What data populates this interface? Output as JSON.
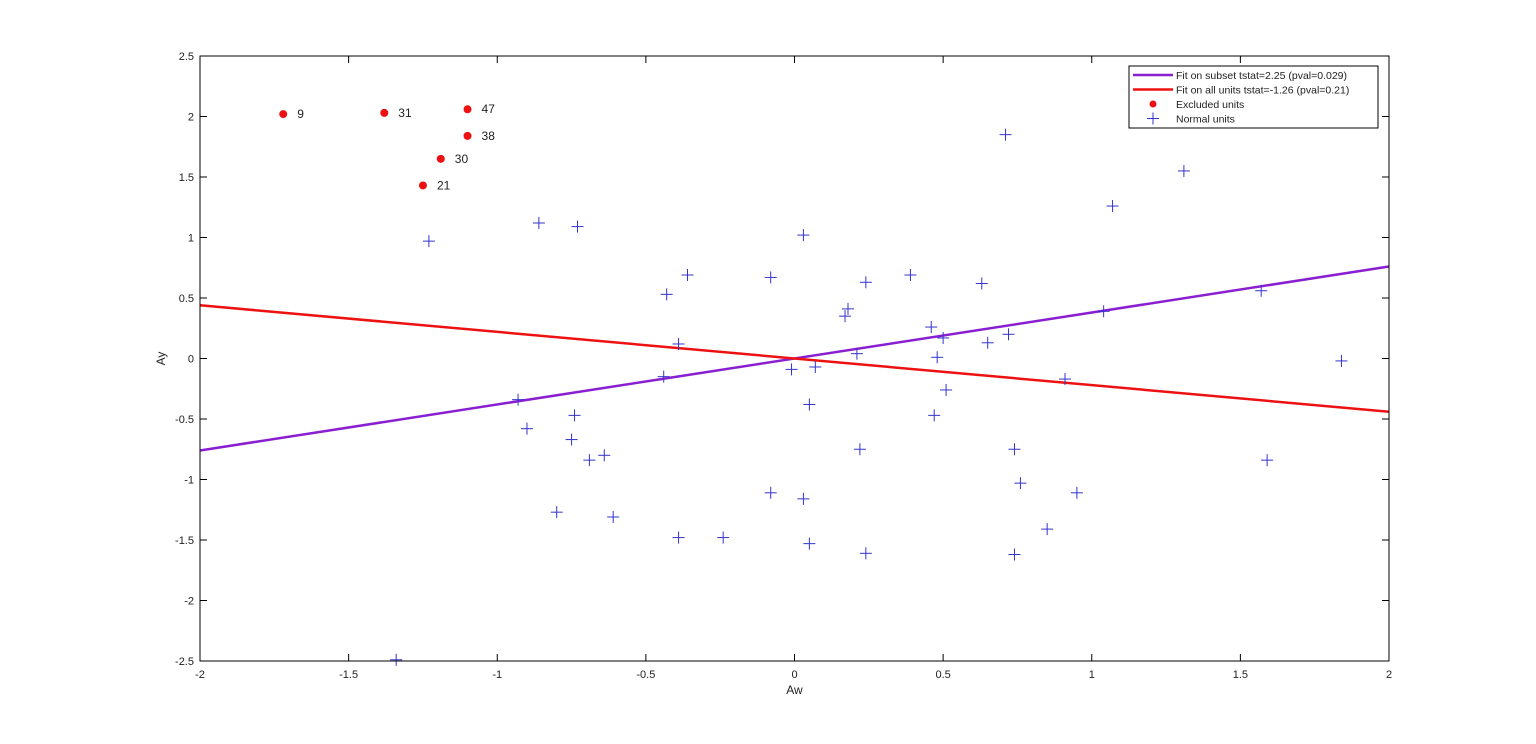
{
  "chart_data": {
    "type": "scatter",
    "xlabel": "Aw",
    "ylabel": "Ay",
    "xlim": [
      -2,
      2
    ],
    "ylim": [
      -2.5,
      2.5
    ],
    "xticks": [
      "-2",
      "-1.5",
      "-1",
      "-0.5",
      "0",
      "0.5",
      "1",
      "1.5",
      "2"
    ],
    "yticks": [
      "2.5",
      "2",
      "1.5",
      "1",
      "0.5",
      "0",
      "-0.5",
      "-1",
      "-1.5",
      "-2",
      "-2.5"
    ],
    "grid": false,
    "legend_position": "top-right",
    "fit_lines": [
      {
        "name": "Fit on subset tstat=2.25 (pval=0.029)",
        "color": "#8a1fd1",
        "slope": 0.38,
        "intercept": 0
      },
      {
        "name": "Fit on all units tstat=-1.26 (pval=0.21)",
        "color": "#ee1111",
        "slope": -0.22,
        "intercept": 0
      }
    ],
    "excluded_units": {
      "name": "Excluded units",
      "color": "#ee1111",
      "marker": "filled-circle",
      "points": [
        {
          "x": -1.72,
          "y": 2.02,
          "label": "9"
        },
        {
          "x": -1.38,
          "y": 2.03,
          "label": "31"
        },
        {
          "x": -1.1,
          "y": 2.06,
          "label": "47"
        },
        {
          "x": -1.1,
          "y": 1.84,
          "label": "38"
        },
        {
          "x": -1.19,
          "y": 1.65,
          "label": "30"
        },
        {
          "x": -1.25,
          "y": 1.43,
          "label": "21"
        }
      ]
    },
    "normal_units": {
      "name": "Normal units",
      "color": "#3333cc",
      "marker": "plus",
      "points": [
        {
          "x": -1.23,
          "y": 0.97
        },
        {
          "x": -0.86,
          "y": 1.12
        },
        {
          "x": -0.73,
          "y": 1.09
        },
        {
          "x": -0.36,
          "y": 0.69
        },
        {
          "x": -0.43,
          "y": 0.53
        },
        {
          "x": -0.39,
          "y": 0.12
        },
        {
          "x": -0.44,
          "y": -0.15
        },
        {
          "x": -0.93,
          "y": -0.34
        },
        {
          "x": -0.9,
          "y": -0.58
        },
        {
          "x": -0.74,
          "y": -0.47
        },
        {
          "x": -0.75,
          "y": -0.67
        },
        {
          "x": -0.69,
          "y": -0.84
        },
        {
          "x": -0.64,
          "y": -0.8
        },
        {
          "x": -0.8,
          "y": -1.27
        },
        {
          "x": -0.61,
          "y": -1.31
        },
        {
          "x": -0.39,
          "y": -1.48
        },
        {
          "x": -0.24,
          "y": -1.48
        },
        {
          "x": -0.08,
          "y": 0.67
        },
        {
          "x": 0.03,
          "y": 1.02
        },
        {
          "x": -0.01,
          "y": -0.09
        },
        {
          "x": 0.07,
          "y": -0.07
        },
        {
          "x": 0.05,
          "y": -0.38
        },
        {
          "x": -0.08,
          "y": -1.11
        },
        {
          "x": 0.03,
          "y": -1.16
        },
        {
          "x": 0.05,
          "y": -1.53
        },
        {
          "x": 0.17,
          "y": 0.35
        },
        {
          "x": 0.18,
          "y": 0.41
        },
        {
          "x": 0.24,
          "y": 0.63
        },
        {
          "x": 0.21,
          "y": 0.04
        },
        {
          "x": 0.22,
          "y": -0.75
        },
        {
          "x": 0.24,
          "y": -1.61
        },
        {
          "x": 0.39,
          "y": 0.69
        },
        {
          "x": 0.46,
          "y": 0.26
        },
        {
          "x": 0.5,
          "y": 0.17
        },
        {
          "x": 0.48,
          "y": 0.01
        },
        {
          "x": 0.51,
          "y": -0.26
        },
        {
          "x": 0.47,
          "y": -0.47
        },
        {
          "x": 0.63,
          "y": 0.62
        },
        {
          "x": 0.65,
          "y": 0.13
        },
        {
          "x": 0.72,
          "y": 0.2
        },
        {
          "x": 0.71,
          "y": 1.85
        },
        {
          "x": 0.74,
          "y": -0.75
        },
        {
          "x": 0.76,
          "y": -1.03
        },
        {
          "x": 0.74,
          "y": -1.62
        },
        {
          "x": 0.85,
          "y": -1.41
        },
        {
          "x": 0.91,
          "y": -0.17
        },
        {
          "x": 0.95,
          "y": -1.11
        },
        {
          "x": 1.04,
          "y": 0.39
        },
        {
          "x": 1.07,
          "y": 1.26
        },
        {
          "x": 1.31,
          "y": 1.55
        },
        {
          "x": 1.57,
          "y": 0.56
        },
        {
          "x": 1.59,
          "y": -0.84
        },
        {
          "x": 1.84,
          "y": -0.02
        },
        {
          "x": -1.34,
          "y": -2.49
        }
      ]
    }
  }
}
